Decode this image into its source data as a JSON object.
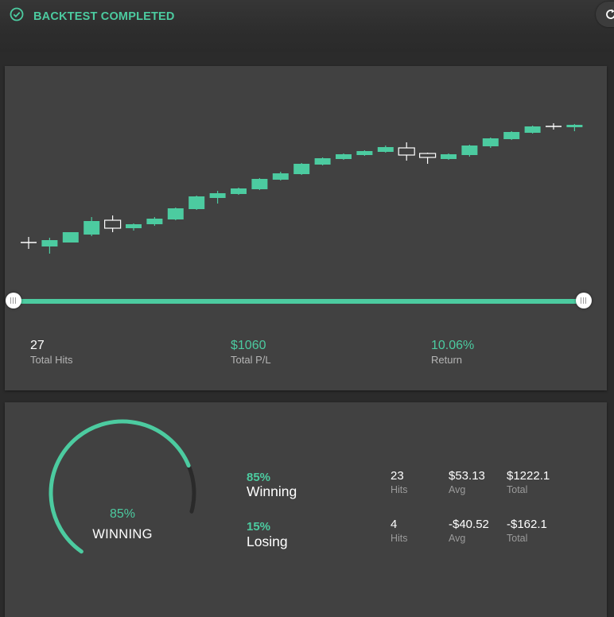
{
  "header": {
    "status_text": "BACKTEST COMPLETED",
    "status_icon": "check-circle-icon",
    "refresh_icon": "refresh-icon",
    "accent_color": "#4ccba0"
  },
  "chart_data": {
    "type": "candlestick",
    "title": "",
    "candles": [
      {
        "o": 400,
        "c": 400,
        "h": 407,
        "l": 392
      },
      {
        "o": 395,
        "c": 403,
        "h": 406,
        "l": 386
      },
      {
        "o": 400,
        "c": 413,
        "h": 413,
        "l": 400
      },
      {
        "o": 410,
        "c": 427,
        "h": 432,
        "l": 408
      },
      {
        "o": 428,
        "c": 418,
        "h": 434,
        "l": 413
      },
      {
        "o": 418,
        "c": 423,
        "h": 424,
        "l": 415
      },
      {
        "o": 423,
        "c": 430,
        "h": 432,
        "l": 421
      },
      {
        "o": 429,
        "c": 443,
        "h": 444,
        "l": 428
      },
      {
        "o": 442,
        "c": 458,
        "h": 459,
        "l": 441
      },
      {
        "o": 456,
        "c": 462,
        "h": 465,
        "l": 449
      },
      {
        "o": 461,
        "c": 468,
        "h": 469,
        "l": 460
      },
      {
        "o": 467,
        "c": 480,
        "h": 481,
        "l": 466
      },
      {
        "o": 479,
        "c": 487,
        "h": 489,
        "l": 478
      },
      {
        "o": 486,
        "c": 499,
        "h": 500,
        "l": 485
      },
      {
        "o": 498,
        "c": 506,
        "h": 507,
        "l": 497
      },
      {
        "o": 505,
        "c": 511,
        "h": 512,
        "l": 504
      },
      {
        "o": 510,
        "c": 515,
        "h": 516,
        "l": 509
      },
      {
        "o": 514,
        "c": 520,
        "h": 522,
        "l": 513
      },
      {
        "o": 519,
        "c": 510,
        "h": 526,
        "l": 503
      },
      {
        "o": 512,
        "c": 507,
        "h": 513,
        "l": 499
      },
      {
        "o": 505,
        "c": 511,
        "h": 512,
        "l": 504
      },
      {
        "o": 510,
        "c": 522,
        "h": 523,
        "l": 508
      },
      {
        "o": 521,
        "c": 531,
        "h": 532,
        "l": 519
      },
      {
        "o": 530,
        "c": 539,
        "h": 540,
        "l": 529
      },
      {
        "o": 538,
        "c": 546,
        "h": 547,
        "l": 537
      },
      {
        "o": 546,
        "c": 546,
        "h": 550,
        "l": 542
      },
      {
        "o": 545,
        "c": 548,
        "h": 549,
        "l": 540
      }
    ]
  },
  "range_slider": {
    "start": 0,
    "end": 1
  },
  "metrics": [
    {
      "value": "27",
      "label": "Total Hits",
      "green": false
    },
    {
      "value": "$1060",
      "label": "Total P/L",
      "green": true
    },
    {
      "value": "10.06%",
      "label": "Return",
      "green": true
    }
  ],
  "gauge": {
    "percent_text": "85%",
    "label": "WINNING",
    "fraction": 0.85
  },
  "winning": {
    "percent": "85%",
    "label": "Winning",
    "hits": "23",
    "hits_label": "Hits",
    "avg": "$53.13",
    "avg_label": "Avg",
    "total": "$1222.1",
    "total_label": "Total"
  },
  "losing": {
    "percent": "15%",
    "label": "Losing",
    "hits": "4",
    "hits_label": "Hits",
    "avg": "-$40.52",
    "avg_label": "Avg",
    "total": "-$162.1",
    "total_label": "Total"
  }
}
